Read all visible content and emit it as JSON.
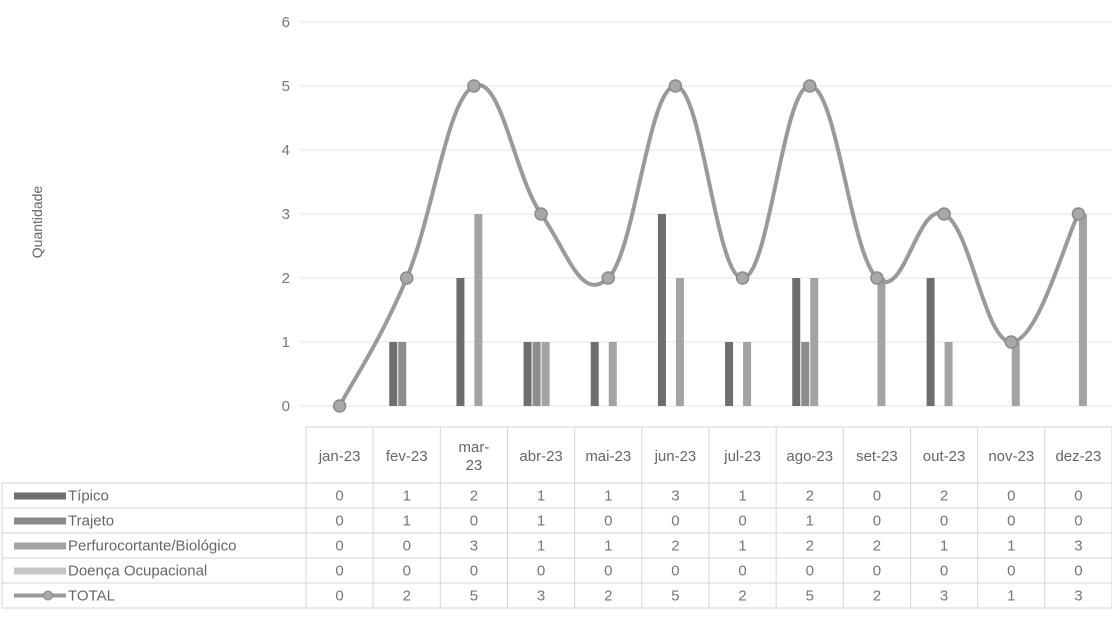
{
  "chart_data": {
    "type": "bar",
    "title": "",
    "xlabel": "",
    "ylabel": "Quantidade",
    "ylim": [
      0,
      6
    ],
    "y_ticks": [
      "0",
      "1",
      "2",
      "3",
      "4",
      "5",
      "6"
    ],
    "grid": true,
    "categories": [
      "jan-23",
      "fev-23",
      "mar-23",
      "abr-23",
      "mai-23",
      "jun-23",
      "jul-23",
      "ago-23",
      "set-23",
      "out-23",
      "nov-23",
      "dez-23"
    ],
    "category_lines": [
      [
        "jan-23"
      ],
      [
        "fev-23"
      ],
      [
        "mar-",
        "23"
      ],
      [
        "abr-23"
      ],
      [
        "mai-23"
      ],
      [
        "jun-23"
      ],
      [
        "jul-23"
      ],
      [
        "ago-23"
      ],
      [
        "set-23"
      ],
      [
        "out-23"
      ],
      [
        "nov-23"
      ],
      [
        "dez-23"
      ]
    ],
    "series": [
      {
        "name": "Típico",
        "type": "bar",
        "color": "#6e6e6e",
        "values": [
          0,
          1,
          2,
          1,
          1,
          3,
          1,
          2,
          0,
          2,
          0,
          0
        ]
      },
      {
        "name": "Trajeto",
        "type": "bar",
        "color": "#8c8c8c",
        "values": [
          0,
          1,
          0,
          1,
          0,
          0,
          0,
          1,
          0,
          0,
          0,
          0
        ]
      },
      {
        "name": "Perfurocortante/Biológico",
        "type": "bar",
        "color": "#a3a3a3",
        "values": [
          0,
          0,
          3,
          1,
          1,
          2,
          1,
          2,
          2,
          1,
          1,
          3
        ]
      },
      {
        "name": "Doença Ocupacional",
        "type": "bar",
        "color": "#c6c6c6",
        "values": [
          0,
          0,
          0,
          0,
          0,
          0,
          0,
          0,
          0,
          0,
          0,
          0
        ]
      },
      {
        "name": "TOTAL",
        "type": "line",
        "color": "#9a9a9a",
        "values": [
          0,
          2,
          5,
          3,
          2,
          5,
          2,
          5,
          2,
          3,
          1,
          3
        ]
      }
    ],
    "data_table": true
  }
}
